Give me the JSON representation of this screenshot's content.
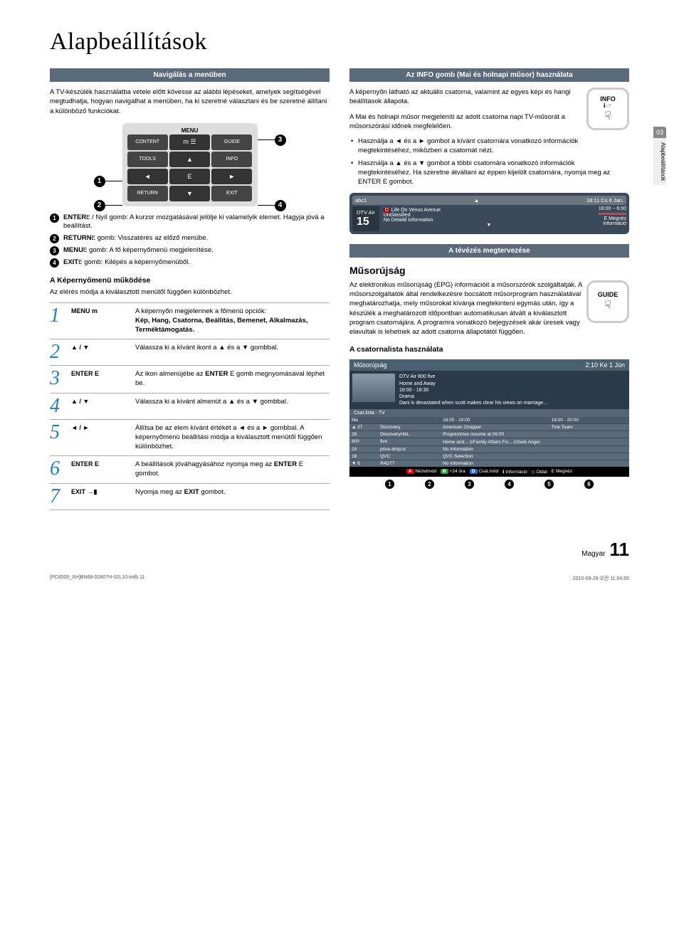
{
  "page": {
    "title": "Alapbeállítások",
    "side_tab_num": "03",
    "side_tab_label": "Alapbeállítások",
    "footer_lang": "Magyar",
    "footer_page": "11",
    "meta_left": "[PC6500_XH]BN68-02807H-02L10.indb   11",
    "meta_right": "2010-09-29   오전 11:04:55"
  },
  "left": {
    "nav_bar": "Navigálás a menüben",
    "intro": "A TV-készülék használatba vétele előtt kövesse az alábbi lépéseket, amelyek segítségével megtudhatja, hogyan navigálhat a menüben, ha ki szeretné választani és be szeretné állítani a különböző funkciókat.",
    "remote": {
      "menu": "MENU",
      "content": "CONTENT",
      "guide": "GUIDE",
      "tools": "TOOLS",
      "info": "INFO",
      "return": "RETURN",
      "exit": "EXIT"
    },
    "callouts": [
      {
        "n": "1",
        "label": "ENTER",
        "text": " / Nyíl gomb: A kurzor mozgatásával jelölje ki valamelyik elemet. Hagyja jóvá a beállítást."
      },
      {
        "n": "2",
        "label": "RETURN",
        "text": " gomb: Visszatérés az előző menübe."
      },
      {
        "n": "3",
        "label": "MENU",
        "text": " gomb: A fő képernyőmenü megjelenítése."
      },
      {
        "n": "4",
        "label": "EXIT",
        "text": " gomb: Kilépés a képernyőmenüből."
      }
    ],
    "osd_head": "A Képernyőmenü működése",
    "osd_sub": "Az elérés módja a kiválasztott menütől függően különbözhet.",
    "steps": [
      {
        "n": "1",
        "btn": "MENU m",
        "desc_pre": "A képernyőn megjelennek a főmenü opciók:",
        "desc_bold": "Kép, Hang, Csatorna, Beállítás, Bemenet, Alkalmazás, Terméktámogatás."
      },
      {
        "n": "2",
        "btn": "▲ / ▼",
        "desc": "Válassza ki a kívánt ikont a ▲ és a ▼ gombbal."
      },
      {
        "n": "3",
        "btn": "ENTER E",
        "desc": "Az ikon almenüjébe az ENTER E gomb megnyomásával léphet be."
      },
      {
        "n": "4",
        "btn": "▲ / ▼",
        "desc": "Válassza ki a kívánt almenüt a ▲ és a ▼ gombbal."
      },
      {
        "n": "5",
        "btn": "◄ / ►",
        "desc": "Állítsa be az elem kívánt értékét a ◄ és a ► gombbal. A képernyőmenü beállítási módja a kiválasztott menütől függően különbözhet."
      },
      {
        "n": "6",
        "btn": "ENTER E",
        "desc": "A beállítások jóváhagyásához nyomja meg az ENTER E gombot."
      },
      {
        "n": "7",
        "btn": "EXIT →▮",
        "desc": "Nyomja meg az EXIT gombot."
      }
    ]
  },
  "right": {
    "info_bar": "Az INFO gomb (Mai és holnapi műsor) használata",
    "info_key": "INFO",
    "info_p1": "A képernyőn látható az aktuális csatorna, valamint az egyes képi és hangi beállítások állapota.",
    "info_p2": "A Mai és holnapi műsor megjeleníti az adott csatorna napi TV-műsorát a műsorszórási időnek megfelelően.",
    "info_b1": "Használja a ◄ és a ► gombot a kívánt csatornára vonatkozó információk megtekintéséhez, miközben a csatornát nézi.",
    "info_b2": "Használja a ▲ és a ▼ gombot a többi csatornára vonatkozó információk megtekintéséhez. Ha szeretne átváltani az éppen kijelölt csatornára, nyomja meg az ENTER E gombot.",
    "info_osd": {
      "abc": "abc1",
      "clock": "18:11 Cs 6 Jan.",
      "chtype": "DTV Air",
      "chnum": "15",
      "prog_d": "D",
      "prog": "Life On Venus Avenue",
      "time": "18:00 ~ 6:00",
      "l1": "Unclassified",
      "l2": "No Detaild Information",
      "r1": "E Megnéz",
      "r2": "Információ"
    },
    "plan_bar": "A tévézés megtervezése",
    "guide_head": "Műsorújság",
    "guide_key": "GUIDE",
    "guide_p": "Az elektronikus műsorújság (EPG) információit a műsorszórók szolgáltatják. A műsorszolgáltatók által rendelkezésre bocsátott műsorprogram használatával meghatározhatja, mely műsorokat kívánja megtekinteni egymás után, így a készülék a meghatározott időpontban automatikusan átvált a kiválasztott program csatornájára. A programra vonatkozó bejegyzések akár üresek vagy elavultak is lehetnek az adott csatorna állapotától függően.",
    "chlist_head": "A csatornalista használata",
    "guide_osd": {
      "title": "Műsorújság",
      "clock": "2:10 Ke 1 Jún",
      "pinfo_l1": "DTV Air 800 five",
      "pinfo_l2": "Home and Away",
      "pinfo_l3": "18:00 - 18:30",
      "pinfo_l4": "Drama",
      "pinfo_l5": "Dani is devastated when scott makes clear his views on marriage...",
      "clist": "Csat.lista - TV",
      "th_today": "Ma",
      "th_t1": "18:00 - 19:00",
      "th_t2": "19:00 - 20:00",
      "rows": [
        {
          "ch": "▲ 27",
          "name": "Discovery",
          "p1": "American Chopper",
          "p2": "Tine Team"
        },
        {
          "ch": "28",
          "name": "DiscoveryH&L",
          "p1": "Programmes resume at 06:00",
          "p2": ""
        },
        {
          "ch": "800",
          "name": "five",
          "p1": "Home and...  ⊙Family Affairs  Fiv...  ⊙Dark Angel",
          "p2": ""
        },
        {
          "ch": "24",
          "name": "price-drop.tv",
          "p1": "No Information",
          "p2": ""
        },
        {
          "ch": "16",
          "name": "QVC",
          "p1": "QVC Selection",
          "p2": ""
        },
        {
          "ch": "▼ 6",
          "name": "R4DTT",
          "p1": "No Information",
          "p2": ""
        }
      ],
      "legend": {
        "a": "A",
        "a_t": "Nézetmód",
        "b": "B",
        "b_t": "+24 óra",
        "d": "D",
        "d_t": "Csat.mód",
        "i_t": "Információ",
        "p_t": "Oldal",
        "e_t": "Megnéz"
      },
      "nums": [
        "1",
        "2",
        "3",
        "4",
        "5",
        "6"
      ]
    }
  },
  "colors": {
    "bar_bg": "#5a6a7a",
    "step_num": "#2a7db0",
    "osd_bg": "#3a4a5a",
    "guide_bg": "#2a3a4a",
    "legend_a": "#d00",
    "legend_b": "#393",
    "legend_d": "#36c"
  }
}
